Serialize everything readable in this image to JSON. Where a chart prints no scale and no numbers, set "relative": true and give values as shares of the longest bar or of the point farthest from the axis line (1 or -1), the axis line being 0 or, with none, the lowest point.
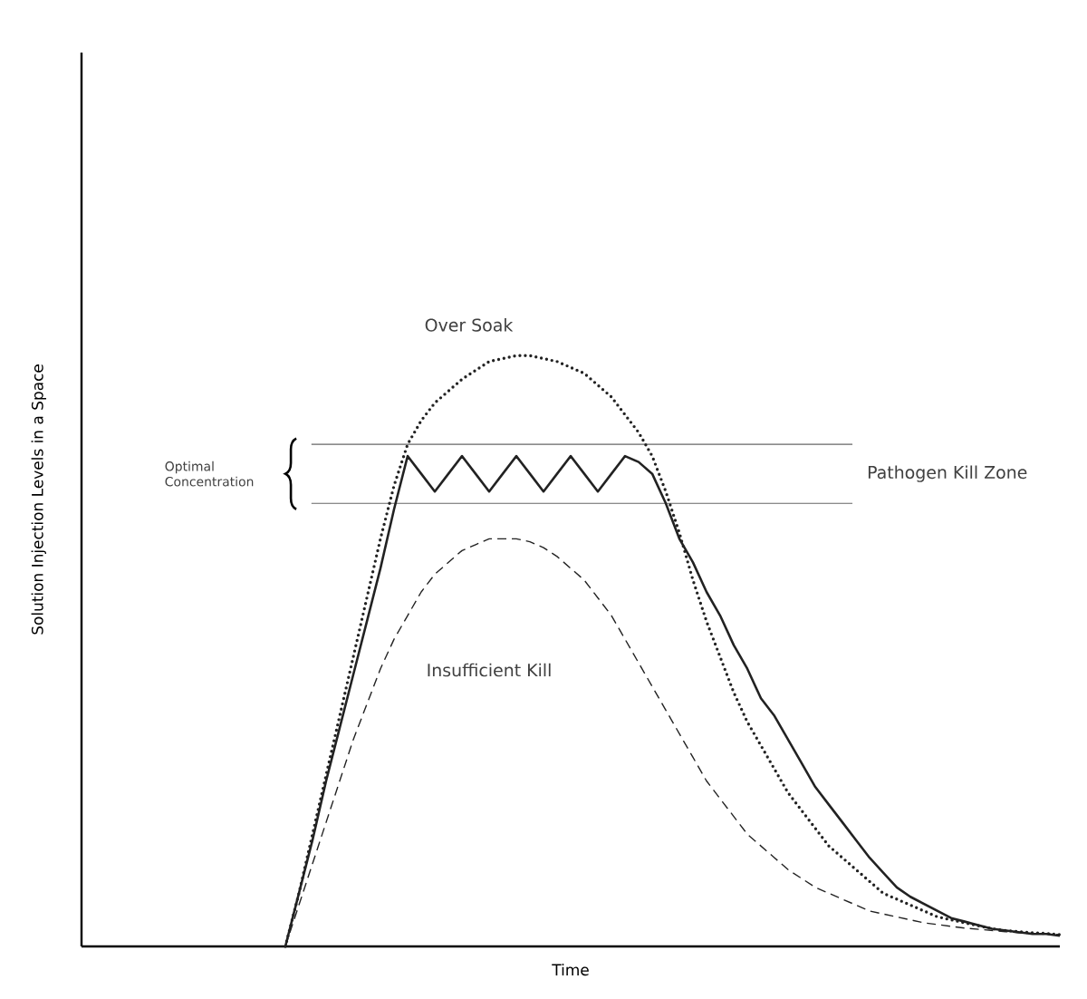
{
  "chart_data": {
    "type": "line",
    "relative": true,
    "xlabel": "Time",
    "ylabel": "Solution Injection Levels in a Space",
    "categories": [
      null,
      null,
      null,
      null,
      null,
      null,
      null,
      null,
      null,
      null,
      null,
      null,
      null,
      null,
      null,
      null,
      null,
      null,
      null,
      null,
      null,
      null,
      null,
      null,
      null,
      null,
      null,
      null,
      null,
      null,
      null,
      null,
      null,
      null,
      null,
      null,
      null,
      null,
      null,
      null,
      null,
      null,
      null,
      null,
      null,
      null,
      null,
      null,
      null,
      null,
      null,
      null,
      null,
      null,
      null,
      null,
      null,
      null,
      null,
      null,
      null,
      null,
      null,
      null,
      null,
      null,
      null,
      null,
      null,
      null,
      null,
      null,
      null
    ],
    "series": [
      {
        "color": "#222222",
        "line_style": "solid",
        "values": [
          null,
          null,
          null,
          null,
          null,
          null,
          null,
          null,
          null,
          null,
          null,
          null,
          null,
          null,
          null,
          0,
          0.09,
          0.18,
          0.28,
          0.37,
          0.46,
          0.55,
          0.64,
          0.74,
          0.83,
          0.8,
          0.77,
          0.8,
          0.83,
          0.8,
          0.77,
          0.8,
          0.83,
          0.8,
          0.77,
          0.8,
          0.83,
          0.8,
          0.77,
          0.8,
          0.83,
          0.82,
          0.8,
          0.75,
          0.69,
          0.65,
          0.6,
          0.56,
          0.51,
          0.47,
          0.42,
          0.39,
          0.35,
          0.31,
          0.27,
          0.24,
          0.21,
          0.18,
          0.15,
          0.125,
          0.1,
          0.084,
          0.072,
          0.06,
          0.048,
          0.042,
          0.036,
          0.03,
          0.027,
          0.024,
          0.021,
          0.021,
          0.018
        ]
      },
      {
        "name": "Over Soak",
        "color": "#222222",
        "line_style": "dotted",
        "values": [
          null,
          null,
          null,
          null,
          null,
          null,
          null,
          null,
          null,
          null,
          null,
          null,
          null,
          null,
          null,
          0,
          0.09,
          0.19,
          0.29,
          0.39,
          0.49,
          0.59,
          0.69,
          0.78,
          0.85,
          0.89,
          0.92,
          0.94,
          0.96,
          0.975,
          0.99,
          0.995,
          1.0,
          1.0,
          0.995,
          0.99,
          0.98,
          0.97,
          0.95,
          0.93,
          0.9,
          0.87,
          0.83,
          0.77,
          0.7,
          0.62,
          0.55,
          0.49,
          0.43,
          0.38,
          0.34,
          0.3,
          0.26,
          0.23,
          0.2,
          0.17,
          0.15,
          0.13,
          0.11,
          0.09,
          0.08,
          0.07,
          0.06,
          0.05,
          0.045,
          0.04,
          0.035,
          0.03,
          0.027,
          0.025,
          0.023,
          0.022,
          0.02
        ]
      },
      {
        "name": "Insufficient Kill",
        "color": "#222222",
        "line_style": "dashed",
        "values": [
          null,
          null,
          null,
          null,
          null,
          null,
          null,
          null,
          null,
          null,
          null,
          null,
          null,
          null,
          null,
          0,
          0.07,
          0.14,
          0.21,
          0.28,
          0.35,
          0.41,
          0.47,
          0.52,
          0.56,
          0.6,
          0.63,
          0.65,
          0.67,
          0.68,
          0.69,
          0.69,
          0.69,
          0.685,
          0.675,
          0.66,
          0.64,
          0.62,
          0.59,
          0.56,
          0.52,
          0.48,
          0.44,
          0.4,
          0.36,
          0.32,
          0.28,
          0.25,
          0.22,
          0.19,
          0.17,
          0.15,
          0.13,
          0.115,
          0.1,
          0.09,
          0.08,
          0.07,
          0.06,
          0.055,
          0.05,
          0.045,
          0.04,
          0.037,
          0.034,
          0.031,
          0.029,
          0.027,
          0.025,
          0.023,
          0.022,
          0.021,
          0.02
        ]
      }
    ],
    "ref_lines": [
      {
        "axis": "y",
        "value": 0.85,
        "color": "#666666"
      },
      {
        "axis": "y",
        "value": 0.75,
        "label": "Pathogen Kill Zone",
        "color": "#666666"
      }
    ],
    "annotations": [
      "Optimal Concentration"
    ]
  }
}
